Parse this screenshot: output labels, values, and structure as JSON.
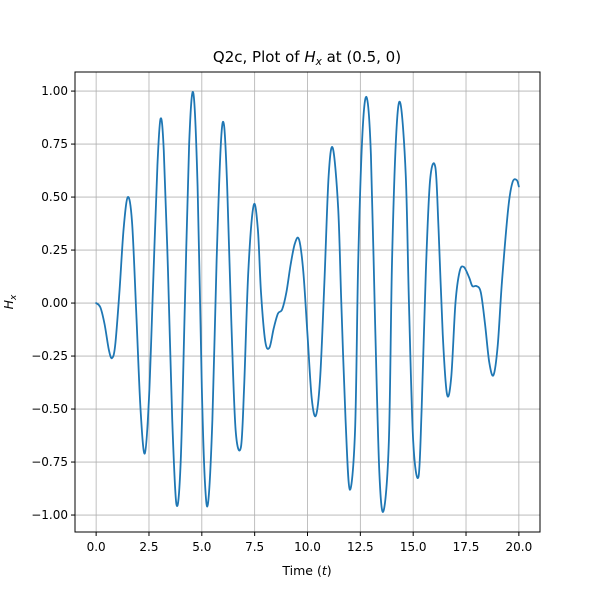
{
  "chart_data": {
    "type": "line",
    "title_prefix": "Q2c, Plot of ",
    "title_var": "H",
    "title_sub": "x",
    "title_suffix": " at (0.5, 0)",
    "xlabel_prefix": "Time (",
    "xlabel_var": "t",
    "xlabel_suffix": ")",
    "ylabel_var": "H",
    "ylabel_sub": "x",
    "xlim": [
      -1.0,
      21.0
    ],
    "ylim": [
      -1.08,
      1.09
    ],
    "grid": true,
    "line_color": "#1f77b4",
    "x_ticks": [
      0.0,
      2.5,
      5.0,
      7.5,
      10.0,
      12.5,
      15.0,
      17.5,
      20.0
    ],
    "x_tick_labels": [
      "0.0",
      "2.5",
      "5.0",
      "7.5",
      "10.0",
      "12.5",
      "15.0",
      "17.5",
      "20.0"
    ],
    "y_ticks": [
      -1.0,
      -0.75,
      -0.5,
      -0.25,
      0.0,
      0.25,
      0.5,
      0.75,
      1.0
    ],
    "y_tick_labels": [
      "−1.00",
      "−0.75",
      "−0.50",
      "−0.25",
      "0.00",
      "0.25",
      "0.50",
      "0.75",
      "1.00"
    ],
    "series": [
      {
        "x": [
          0.0,
          0.2,
          0.4,
          0.6,
          0.75,
          0.9,
          1.1,
          1.3,
          1.5,
          1.7,
          1.9,
          2.1,
          2.3,
          2.5,
          2.7,
          2.9,
          3.05,
          3.2,
          3.4,
          3.6,
          3.8,
          4.0,
          4.2,
          4.4,
          4.6,
          4.8,
          5.0,
          5.15,
          5.3,
          5.5,
          5.7,
          5.9,
          6.05,
          6.2,
          6.4,
          6.6,
          6.85,
          7.0,
          7.2,
          7.45,
          7.65,
          7.8,
          8.0,
          8.2,
          8.4,
          8.6,
          8.8,
          9.0,
          9.2,
          9.4,
          9.6,
          9.8,
          10.0,
          10.2,
          10.4,
          10.6,
          10.8,
          11.0,
          11.2,
          11.45,
          11.6,
          11.8,
          12.0,
          12.25,
          12.4,
          12.6,
          12.8,
          13.0,
          13.2,
          13.4,
          13.6,
          13.85,
          14.0,
          14.2,
          14.4,
          14.65,
          14.8,
          15.0,
          15.25,
          15.4,
          15.6,
          15.8,
          16.05,
          16.2,
          16.4,
          16.6,
          16.8,
          17.0,
          17.2,
          17.4,
          17.65,
          17.8,
          18.0,
          18.2,
          18.4,
          18.6,
          18.8,
          19.0,
          19.2,
          19.5,
          19.7,
          19.9,
          20.0
        ],
        "y": [
          0.0,
          -0.02,
          -0.1,
          -0.22,
          -0.26,
          -0.2,
          0.05,
          0.35,
          0.5,
          0.38,
          -0.05,
          -0.5,
          -0.71,
          -0.45,
          0.1,
          0.65,
          0.87,
          0.72,
          0.15,
          -0.55,
          -0.95,
          -0.75,
          0.0,
          0.75,
          0.99,
          0.55,
          -0.4,
          -0.85,
          -0.94,
          -0.55,
          0.2,
          0.75,
          0.84,
          0.55,
          -0.1,
          -0.6,
          -0.68,
          -0.4,
          0.15,
          0.46,
          0.35,
          0.05,
          -0.18,
          -0.21,
          -0.12,
          -0.05,
          -0.03,
          0.05,
          0.18,
          0.28,
          0.3,
          0.15,
          -0.15,
          -0.45,
          -0.53,
          -0.35,
          0.1,
          0.6,
          0.73,
          0.45,
          0.0,
          -0.55,
          -0.88,
          -0.6,
          0.2,
          0.8,
          0.97,
          0.7,
          -0.1,
          -0.8,
          -0.98,
          -0.65,
          0.2,
          0.8,
          0.94,
          0.6,
          0.0,
          -0.65,
          -0.82,
          -0.5,
          0.15,
          0.58,
          0.64,
          0.35,
          -0.15,
          -0.43,
          -0.35,
          0.0,
          0.15,
          0.17,
          0.12,
          0.08,
          0.08,
          0.05,
          -0.1,
          -0.28,
          -0.34,
          -0.2,
          0.1,
          0.45,
          0.57,
          0.58,
          0.55
        ]
      }
    ]
  }
}
